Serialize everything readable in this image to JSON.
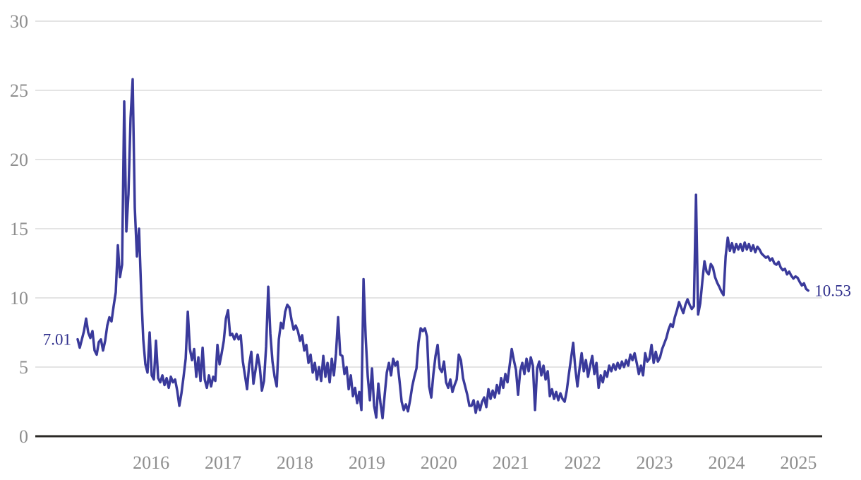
{
  "colors": {
    "background": "#ffffff",
    "grid_line": "#dcdcdc",
    "axis_line": "#2b2926",
    "tick_text": "#8e8e8e",
    "series_line": "#3a3a9b",
    "value_label_text": "#2f2f8c"
  },
  "chart_data": {
    "type": "line",
    "title": "",
    "xlabel": "",
    "ylabel": "",
    "legend": "none",
    "start_label": "7.01",
    "end_label": "10.53",
    "x_axis": {
      "min": 2014.39,
      "max": 2025.33,
      "tick_values": [
        2016,
        2017,
        2018,
        2019,
        2020,
        2021,
        2022,
        2023,
        2024,
        2025
      ],
      "tick_labels": [
        "2016",
        "2017",
        "2018",
        "2019",
        "2020",
        "2021",
        "2022",
        "2023",
        "2024",
        "2025"
      ],
      "grid": false
    },
    "y_axis": {
      "min": 0,
      "max": 30,
      "tick_values": [
        0,
        5,
        10,
        15,
        20,
        25,
        30
      ],
      "tick_labels": [
        "0",
        "5",
        "10",
        "15",
        "20",
        "25",
        "30"
      ],
      "grid": true
    },
    "series": [
      {
        "name": "value",
        "color": "#3a3a9b",
        "x_start": 2014.979,
        "x_step": 0.02944,
        "values": [
          7.01,
          6.4,
          7.0,
          7.6,
          8.5,
          7.5,
          7.1,
          7.6,
          6.2,
          5.9,
          6.8,
          7.0,
          6.2,
          6.9,
          8.0,
          8.6,
          8.3,
          9.4,
          10.4,
          13.8,
          11.5,
          12.4,
          24.2,
          14.8,
          17.5,
          23.0,
          25.8,
          16.5,
          13.0,
          15.0,
          10.5,
          7.0,
          5.2,
          4.6,
          7.5,
          4.4,
          4.1,
          6.9,
          4.2,
          3.9,
          4.4,
          3.7,
          4.2,
          3.5,
          4.3,
          3.9,
          4.1,
          3.3,
          2.2,
          3.1,
          4.3,
          5.6,
          9.0,
          6.3,
          5.5,
          6.3,
          4.3,
          5.7,
          4.0,
          6.4,
          4.1,
          3.5,
          4.4,
          3.6,
          4.3,
          4.0,
          6.6,
          5.2,
          6.0,
          6.9,
          8.5,
          9.1,
          7.3,
          7.4,
          7.0,
          7.4,
          7.0,
          7.3,
          5.4,
          4.4,
          3.4,
          5.2,
          6.1,
          3.8,
          4.8,
          5.9,
          5.0,
          3.3,
          4.0,
          6.5,
          10.8,
          7.4,
          5.4,
          4.3,
          3.6,
          7.0,
          8.2,
          7.8,
          9.0,
          9.5,
          9.3,
          8.4,
          7.7,
          8.0,
          7.6,
          6.9,
          7.3,
          6.2,
          6.6,
          5.3,
          5.9,
          4.6,
          5.3,
          4.1,
          5.0,
          4.0,
          5.8,
          4.3,
          5.3,
          3.9,
          5.6,
          4.4,
          6.0,
          8.6,
          5.9,
          5.8,
          4.5,
          5.0,
          3.4,
          4.4,
          2.9,
          3.5,
          2.4,
          3.2,
          1.9,
          11.35,
          7.2,
          4.3,
          2.6,
          4.9,
          2.2,
          1.35,
          3.8,
          2.4,
          1.3,
          3.0,
          4.6,
          5.3,
          4.4,
          5.6,
          5.1,
          5.4,
          4.0,
          2.5,
          1.9,
          2.3,
          1.8,
          2.6,
          3.6,
          4.3,
          4.9,
          6.8,
          7.8,
          7.6,
          7.8,
          7.2,
          3.6,
          2.8,
          4.5,
          5.8,
          6.6,
          4.9,
          4.65,
          5.4,
          3.9,
          3.5,
          4.1,
          3.2,
          3.7,
          4.1,
          5.9,
          5.5,
          4.2,
          3.6,
          3.0,
          2.2,
          2.2,
          2.6,
          1.7,
          2.5,
          1.9,
          2.5,
          2.8,
          2.1,
          3.4,
          2.7,
          3.3,
          2.8,
          3.7,
          3.1,
          4.2,
          3.5,
          4.5,
          3.9,
          5.1,
          6.3,
          5.5,
          4.8,
          3.0,
          4.7,
          5.3,
          4.5,
          5.6,
          4.7,
          5.7,
          5.1,
          1.9,
          4.9,
          5.4,
          4.4,
          5.1,
          4.1,
          4.7,
          2.9,
          3.4,
          2.7,
          3.2,
          2.6,
          3.1,
          2.7,
          2.5,
          3.3,
          4.5,
          5.6,
          6.75,
          4.9,
          3.6,
          4.9,
          6.0,
          4.7,
          5.5,
          4.3,
          5.1,
          5.8,
          4.5,
          5.3,
          3.5,
          4.4,
          3.9,
          4.7,
          4.3,
          5.1,
          4.7,
          5.2,
          4.8,
          5.3,
          4.9,
          5.4,
          5.0,
          5.5,
          5.1,
          5.9,
          5.5,
          6.0,
          5.3,
          4.5,
          5.1,
          4.4,
          6.0,
          5.4,
          5.6,
          6.6,
          5.3,
          6.1,
          5.4,
          5.7,
          6.3,
          6.7,
          7.1,
          7.7,
          8.1,
          7.9,
          8.6,
          9.1,
          9.7,
          9.3,
          8.9,
          9.5,
          9.9,
          9.5,
          9.2,
          9.4,
          17.45,
          8.8,
          9.6,
          11.2,
          12.65,
          11.9,
          11.7,
          12.45,
          12.2,
          11.5,
          11.1,
          10.8,
          10.45,
          10.2,
          13.0,
          14.35,
          13.4,
          13.95,
          13.3,
          13.9,
          13.5,
          13.9,
          13.4,
          14.0,
          13.5,
          13.9,
          13.4,
          13.8,
          13.3,
          13.7,
          13.5,
          13.2,
          13.05,
          12.9,
          13.0,
          12.7,
          12.85,
          12.5,
          12.4,
          12.6,
          12.2,
          12.0,
          12.1,
          11.7,
          11.9,
          11.6,
          11.4,
          11.55,
          11.45,
          11.15,
          10.9,
          11.05,
          10.65,
          10.53
        ]
      }
    ]
  }
}
